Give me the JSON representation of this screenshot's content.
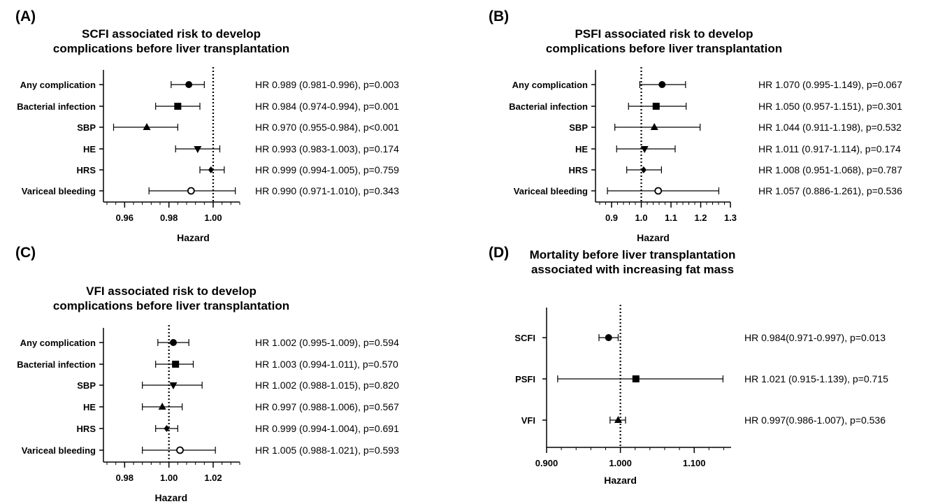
{
  "chart_data": [
    {
      "type": "forest",
      "panel": "(A)",
      "title_lines": [
        "SCFI associated risk to develop",
        "complications before liver transplantation"
      ],
      "xlabel": "Hazard",
      "xlim": [
        0.952,
        1.012
      ],
      "xticks": [
        0.96,
        0.98,
        1.0
      ],
      "xtick_labels": [
        "0.96",
        "0.98",
        "1.00"
      ],
      "reference_line": 1.0,
      "rows": [
        {
          "label": "Any complication",
          "hr": 0.989,
          "ci": [
            0.981,
            0.996
          ],
          "marker": "circle",
          "text": "HR 0.989  (0.981-0.996), p=0.003"
        },
        {
          "label": "Bacterial infection",
          "hr": 0.984,
          "ci": [
            0.974,
            0.994
          ],
          "marker": "square",
          "text": "HR 0.984  (0.974-0.994), p=0.001"
        },
        {
          "label": "SBP",
          "hr": 0.97,
          "ci": [
            0.955,
            0.984
          ],
          "marker": "triangle-up",
          "text": "HR 0.970  (0.955-0.984), p<0.001"
        },
        {
          "label": "HE",
          "hr": 0.993,
          "ci": [
            0.983,
            1.003
          ],
          "marker": "triangle-down",
          "text": "HR 0.993  (0.983-1.003), p=0.174"
        },
        {
          "label": "HRS",
          "hr": 0.999,
          "ci": [
            0.994,
            1.005
          ],
          "marker": "diamond",
          "text": "HR 0.999  (0.994-1.005), p=0.759"
        },
        {
          "label": "Variceal bleeding",
          "hr": 0.99,
          "ci": [
            0.971,
            1.01
          ],
          "marker": "open-circle",
          "text": "HR 0.990  (0.971-1.010), p=0.343"
        }
      ]
    },
    {
      "type": "forest",
      "panel": "(B)",
      "title_lines": [
        "PSFI associated risk to develop",
        "complications before liver transplantation"
      ],
      "xlabel": "Hazard",
      "xlim": [
        0.86,
        1.3
      ],
      "xticks": [
        0.9,
        1.0,
        1.1,
        1.2,
        1.3
      ],
      "xtick_labels": [
        "0.9",
        "1.0",
        "1.1",
        "1.2",
        "1.3"
      ],
      "reference_line": 1.0,
      "rows": [
        {
          "label": "Any complication",
          "hr": 1.07,
          "ci": [
            0.995,
            1.149
          ],
          "marker": "circle",
          "text": "HR 1.070 (0.995-1.149), p=0.067"
        },
        {
          "label": "Bacterial infection",
          "hr": 1.05,
          "ci": [
            0.957,
            1.151
          ],
          "marker": "square",
          "text": "HR 1.050 (0.957-1.151), p=0.301"
        },
        {
          "label": "SBP",
          "hr": 1.044,
          "ci": [
            0.911,
            1.198
          ],
          "marker": "triangle-up",
          "text": "HR 1.044 (0.911-1.198), p=0.532"
        },
        {
          "label": "HE",
          "hr": 1.011,
          "ci": [
            0.917,
            1.114
          ],
          "marker": "triangle-down",
          "text": "HR 1.011 (0.917-1.114), p=0.174"
        },
        {
          "label": "HRS",
          "hr": 1.008,
          "ci": [
            0.951,
            1.068
          ],
          "marker": "diamond",
          "text": "HR 1.008 (0.951-1.068), p=0.787"
        },
        {
          "label": "Variceal bleeding",
          "hr": 1.057,
          "ci": [
            0.886,
            1.261
          ],
          "marker": "open-circle",
          "text": "HR 1.057 (0.886-1.261), p=0.536"
        }
      ]
    },
    {
      "type": "forest",
      "panel": "(C)",
      "title_lines": [
        "VFI associated risk to develop",
        "complications before liver transplantation"
      ],
      "xlabel": "Hazard",
      "xlim": [
        0.972,
        1.032
      ],
      "xticks": [
        0.98,
        1.0,
        1.02
      ],
      "xtick_labels": [
        "0.98",
        "1.00",
        "1.02"
      ],
      "reference_line": 1.0,
      "rows": [
        {
          "label": "Any complication",
          "hr": 1.002,
          "ci": [
            0.995,
            1.009
          ],
          "marker": "circle",
          "text": "HR 1.002 (0.995-1.009), p=0.594"
        },
        {
          "label": "Bacterial infection",
          "hr": 1.003,
          "ci": [
            0.994,
            1.011
          ],
          "marker": "square",
          "text": "HR 1.003 (0.994-1.011), p=0.570"
        },
        {
          "label": "SBP",
          "hr": 1.002,
          "ci": [
            0.988,
            1.015
          ],
          "marker": "triangle-down",
          "text": "HR 1.002 (0.988-1.015), p=0.820"
        },
        {
          "label": "HE",
          "hr": 0.997,
          "ci": [
            0.988,
            1.006
          ],
          "marker": "triangle-up",
          "text": "HR 0.997 (0.988-1.006), p=0.567"
        },
        {
          "label": "HRS",
          "hr": 0.999,
          "ci": [
            0.994,
            1.004
          ],
          "marker": "diamond",
          "text": "HR 0.999 (0.994-1.004), p=0.691"
        },
        {
          "label": "Variceal bleeding",
          "hr": 1.005,
          "ci": [
            0.988,
            1.021
          ],
          "marker": "open-circle",
          "text": "HR 1.005 (0.988-1.021), p=0.593"
        }
      ]
    },
    {
      "type": "forest",
      "panel": "(D)",
      "title_lines": [
        "Mortality before liver transplantation",
        "associated with increasing fat mass"
      ],
      "xlabel": "Hazard",
      "xlim": [
        0.9,
        1.15
      ],
      "xticks": [
        0.9,
        1.0,
        1.1
      ],
      "xtick_labels": [
        "0.900",
        "1.000",
        "1.100"
      ],
      "reference_line": 1.0,
      "rows": [
        {
          "label": "SCFI",
          "hr": 0.984,
          "ci": [
            0.971,
            0.997
          ],
          "marker": "circle",
          "text": "HR 0.984(0.971-0.997), p=0.013"
        },
        {
          "label": "PSFI",
          "hr": 1.021,
          "ci": [
            0.915,
            1.139
          ],
          "marker": "square",
          "text": "HR 1.021 (0.915-1.139), p=0.715"
        },
        {
          "label": "VFI",
          "hr": 0.997,
          "ci": [
            0.986,
            1.007
          ],
          "marker": "triangle-up",
          "text": "HR 0.997(0.986-1.007), p=0.536"
        }
      ]
    }
  ]
}
